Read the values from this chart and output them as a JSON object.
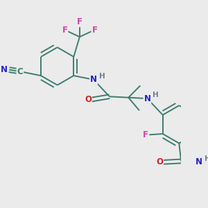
{
  "background_color": "#ebebeb",
  "figsize": [
    3.0,
    3.0
  ],
  "dpi": 100,
  "atom_colors": {
    "C": "#3d7d6e",
    "N": "#2222cc",
    "O": "#cc2222",
    "F": "#cc44aa",
    "H": "#708090"
  },
  "bond_color": "#3d7d6e",
  "font_size": 8.5
}
